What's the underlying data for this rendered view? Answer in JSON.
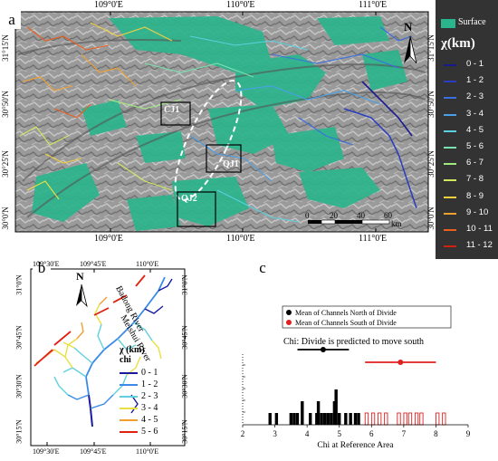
{
  "panel_a": {
    "letter": "a",
    "top_lon_labels": [
      "109°0'E",
      "110°0'E",
      "111°0'E"
    ],
    "bottom_lon_labels": [
      "109°0'E",
      "110°0'E",
      "111°0'E"
    ],
    "left_lat_labels": [
      "31°15'N",
      "30°50'N",
      "30°25'N",
      "30°0'N"
    ],
    "right_lat_labels": [
      "31°15'N",
      "30°50'N",
      "30°25'N",
      "30°0'N"
    ],
    "box_labels": [
      "CJ1",
      "QJ1",
      "QJ2"
    ],
    "north_label": "N",
    "scale_ticks": [
      "0",
      "20",
      "40",
      "60"
    ],
    "scale_unit": "km",
    "legend": {
      "surface_label": "Surface",
      "surface_color": "#2bb58c",
      "title": "χ(km)",
      "classes": [
        {
          "label": "0 - 1",
          "color": "#1a1a8c"
        },
        {
          "label": "1 - 2",
          "color": "#2a3cc0"
        },
        {
          "label": "2 - 3",
          "color": "#3a6fe0"
        },
        {
          "label": "3 - 4",
          "color": "#4aa0e8"
        },
        {
          "label": "4 - 5",
          "color": "#5ad0e0"
        },
        {
          "label": "5 - 6",
          "color": "#7ae0b0"
        },
        {
          "label": "6 - 7",
          "color": "#a0e880"
        },
        {
          "label": "7 - 8",
          "color": "#d0e860"
        },
        {
          "label": "8 - 9",
          "color": "#f0d040"
        },
        {
          "label": "9 - 10",
          "color": "#f0a030"
        },
        {
          "label": "10 - 11",
          "color": "#e86020"
        },
        {
          "label": "11 - 12",
          "color": "#d02010"
        }
      ]
    }
  },
  "panel_b": {
    "letter": "b",
    "top_lon_labels": [
      "109°30'E",
      "109°45'E",
      "110°0'E"
    ],
    "bottom_lon_labels": [
      "109°30'E",
      "109°45'E",
      "110°0'E"
    ],
    "left_lat_labels": [
      "31°0'N",
      "30°45'N",
      "30°30'N",
      "30°15'N"
    ],
    "right_lat_labels": [
      "31°0'N",
      "30°45'N",
      "30°30'N",
      "30°15'N"
    ],
    "north_label": "N",
    "river_labels": [
      "Badong River",
      "Meishui River"
    ],
    "legend": {
      "title": "χ (km)",
      "subtitle": "chi",
      "classes": [
        {
          "label": "0 - 1",
          "color": "#1a1aa0"
        },
        {
          "label": "1 - 2",
          "color": "#3a8ae8"
        },
        {
          "label": "2 - 3",
          "color": "#60d0e0"
        },
        {
          "label": "3 - 4",
          "color": "#e8e040"
        },
        {
          "label": "4 - 5",
          "color": "#f0a030"
        },
        {
          "label": "5 - 6",
          "color": "#e02010"
        }
      ]
    }
  },
  "panel_c": {
    "letter": "c",
    "chart_data": {
      "type": "bar",
      "xlabel": "Chi at Reference Area",
      "xlim": [
        2,
        9
      ],
      "x_ticks": [
        "2",
        "3",
        "4",
        "5",
        "6",
        "7",
        "8",
        "9"
      ],
      "annotation": "Chi: Divide is predicted to move south",
      "legend_position": "top",
      "series": [
        {
          "name": "Mean of Channels North of Divide",
          "color": "#000000",
          "mean": 4.5,
          "error_low": 3.7,
          "error_high": 5.3,
          "bars": [
            {
              "x": 2.85,
              "h": 1
            },
            {
              "x": 3.05,
              "h": 1
            },
            {
              "x": 3.5,
              "h": 1
            },
            {
              "x": 3.6,
              "h": 1
            },
            {
              "x": 3.7,
              "h": 1
            },
            {
              "x": 3.85,
              "h": 2
            },
            {
              "x": 4.1,
              "h": 1
            },
            {
              "x": 4.3,
              "h": 1
            },
            {
              "x": 4.35,
              "h": 2
            },
            {
              "x": 4.45,
              "h": 1
            },
            {
              "x": 4.55,
              "h": 1
            },
            {
              "x": 4.65,
              "h": 1
            },
            {
              "x": 4.75,
              "h": 1
            },
            {
              "x": 4.85,
              "h": 2
            },
            {
              "x": 4.9,
              "h": 3
            },
            {
              "x": 5.0,
              "h": 1
            },
            {
              "x": 5.2,
              "h": 1
            },
            {
              "x": 5.35,
              "h": 1
            },
            {
              "x": 5.5,
              "h": 1
            },
            {
              "x": 5.6,
              "h": 1
            }
          ]
        },
        {
          "name": "Mean of Channels South of Divide",
          "color": "#e02020",
          "mean": 6.9,
          "error_low": 5.8,
          "error_high": 8.0,
          "bars": [
            {
              "x": 5.85,
              "h": 1
            },
            {
              "x": 6.05,
              "h": 1
            },
            {
              "x": 6.25,
              "h": 1
            },
            {
              "x": 6.45,
              "h": 1
            },
            {
              "x": 6.85,
              "h": 1
            },
            {
              "x": 7.05,
              "h": 1
            },
            {
              "x": 7.2,
              "h": 1
            },
            {
              "x": 7.4,
              "h": 1
            },
            {
              "x": 7.55,
              "h": 1
            },
            {
              "x": 8.05,
              "h": 1
            },
            {
              "x": 8.25,
              "h": 1
            }
          ]
        }
      ]
    }
  }
}
